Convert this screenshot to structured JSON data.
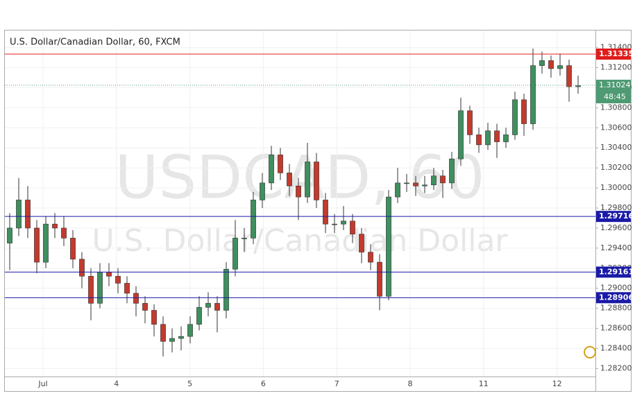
{
  "chart_data": {
    "type": "candlestick",
    "title": "U.S. Dollar/Canadian Dollar, 60, FXCM",
    "watermark": "USDCAD, 60",
    "watermark_subtitle": "U.S. Dollar/Canadian Dollar",
    "categories": [
      "Jul",
      "4",
      "5",
      "6",
      "7",
      "8",
      "11",
      "12"
    ],
    "up_color": "#3f8f5f",
    "down_color": "#c23b2e",
    "ylim": [
      1.2812,
      1.3157
    ],
    "yticks": [
      {
        "value": 1.282,
        "label": "1.28200"
      },
      {
        "value": 1.284,
        "label": "1.28400"
      },
      {
        "value": 1.286,
        "label": "1.28600"
      },
      {
        "value": 1.288,
        "label": "1.28800"
      },
      {
        "value": 1.29,
        "label": "1.29000"
      },
      {
        "value": 1.292,
        "label": "1.29200"
      },
      {
        "value": 1.294,
        "label": "1.29400"
      },
      {
        "value": 1.296,
        "label": "1.29600"
      },
      {
        "value": 1.298,
        "label": "1.29800"
      },
      {
        "value": 1.3,
        "label": "1.30000"
      },
      {
        "value": 1.302,
        "label": "1.30200"
      },
      {
        "value": 1.304,
        "label": "1.30400"
      },
      {
        "value": 1.306,
        "label": "1.30600"
      },
      {
        "value": 1.308,
        "label": "1.30800"
      },
      {
        "value": 1.31,
        "label": "1.31000"
      },
      {
        "value": 1.312,
        "label": "1.31200"
      },
      {
        "value": 1.314,
        "label": "1.31400"
      }
    ],
    "grid": true,
    "levels": [
      {
        "value": 1.31335,
        "color": "#e01b1b"
      },
      {
        "value": 1.29716,
        "color": "#1a1aa8"
      },
      {
        "value": 1.29161,
        "color": "#1a1aa8"
      },
      {
        "value": 1.28906,
        "color": "#1a1aa8"
      }
    ],
    "last_price": 1.31024,
    "last_price_color": "#4e9a73",
    "countdown": "48:45",
    "candles": [
      [
        1.2945,
        1.2975,
        1.2918,
        1.296
      ],
      [
        1.296,
        1.301,
        1.2952,
        1.2988
      ],
      [
        1.2988,
        1.3002,
        1.295,
        1.296
      ],
      [
        1.296,
        1.2968,
        1.2915,
        1.2926
      ],
      [
        1.2926,
        1.2972,
        1.292,
        1.2964
      ],
      [
        1.2964,
        1.2975,
        1.295,
        1.296
      ],
      [
        1.296,
        1.2972,
        1.2942,
        1.295
      ],
      [
        1.295,
        1.2958,
        1.292,
        1.2929
      ],
      [
        1.2929,
        1.2936,
        1.29,
        1.2912
      ],
      [
        1.2912,
        1.292,
        1.2868,
        1.2885
      ],
      [
        1.2885,
        1.2925,
        1.288,
        1.2916
      ],
      [
        1.2916,
        1.2925,
        1.2902,
        1.2912
      ],
      [
        1.2912,
        1.292,
        1.2895,
        1.2905
      ],
      [
        1.2905,
        1.2912,
        1.2885,
        1.2895
      ],
      [
        1.2895,
        1.2902,
        1.2872,
        1.2885
      ],
      [
        1.2885,
        1.2892,
        1.2865,
        1.2878
      ],
      [
        1.2878,
        1.2884,
        1.2852,
        1.2864
      ],
      [
        1.2864,
        1.2872,
        1.2832,
        1.2847
      ],
      [
        1.2847,
        1.286,
        1.2836,
        1.285
      ],
      [
        1.285,
        1.2862,
        1.2838,
        1.2852
      ],
      [
        1.2852,
        1.2872,
        1.2845,
        1.2864
      ],
      [
        1.2864,
        1.2892,
        1.2858,
        1.2881
      ],
      [
        1.2881,
        1.2896,
        1.2872,
        1.2885
      ],
      [
        1.2885,
        1.2892,
        1.2856,
        1.2878
      ],
      [
        1.2878,
        1.2926,
        1.287,
        1.2919
      ],
      [
        1.2919,
        1.2968,
        1.2912,
        1.295
      ],
      [
        1.295,
        1.296,
        1.2936,
        1.295
      ],
      [
        1.295,
        1.2996,
        1.2944,
        1.2988
      ],
      [
        1.2988,
        1.3015,
        1.298,
        1.3005
      ],
      [
        1.3005,
        1.3042,
        1.2998,
        1.3033
      ],
      [
        1.3033,
        1.304,
        1.3008,
        1.3015
      ],
      [
        1.3015,
        1.3024,
        1.2992,
        1.3002
      ],
      [
        1.3002,
        1.301,
        1.2968,
        1.2991
      ],
      [
        1.2991,
        1.3045,
        1.2985,
        1.3026
      ],
      [
        1.3026,
        1.3035,
        1.298,
        1.2988
      ],
      [
        1.2988,
        1.2995,
        1.2955,
        1.2964
      ],
      [
        1.2964,
        1.2974,
        1.2955,
        1.2964
      ],
      [
        1.2964,
        1.2982,
        1.2958,
        1.2967
      ],
      [
        1.2967,
        1.2974,
        1.2945,
        1.2954
      ],
      [
        1.2954,
        1.296,
        1.2925,
        1.2936
      ],
      [
        1.2936,
        1.2944,
        1.2918,
        1.2926
      ],
      [
        1.2926,
        1.2934,
        1.2878,
        1.2892
      ],
      [
        1.2892,
        1.2998,
        1.2888,
        1.2991
      ],
      [
        1.2991,
        1.302,
        1.2985,
        1.3005
      ],
      [
        1.3005,
        1.3014,
        1.2996,
        1.3005
      ],
      [
        1.3005,
        1.3012,
        1.2992,
        1.3002
      ],
      [
        1.3002,
        1.3012,
        1.2995,
        1.3003
      ],
      [
        1.3003,
        1.302,
        1.2998,
        1.3012
      ],
      [
        1.3012,
        1.3018,
        1.299,
        1.3005
      ],
      [
        1.3005,
        1.3036,
        1.2999,
        1.3029
      ],
      [
        1.3029,
        1.309,
        1.3022,
        1.3077
      ],
      [
        1.3077,
        1.3082,
        1.3044,
        1.3053
      ],
      [
        1.3053,
        1.306,
        1.3035,
        1.3043
      ],
      [
        1.3043,
        1.3065,
        1.3038,
        1.3057
      ],
      [
        1.3057,
        1.3064,
        1.303,
        1.3046
      ],
      [
        1.3046,
        1.306,
        1.304,
        1.3053
      ],
      [
        1.3053,
        1.3096,
        1.3048,
        1.3088
      ],
      [
        1.3088,
        1.3094,
        1.3052,
        1.3064
      ],
      [
        1.3064,
        1.3139,
        1.3058,
        1.3122
      ],
      [
        1.3122,
        1.3136,
        1.3114,
        1.3127
      ],
      [
        1.3127,
        1.3132,
        1.311,
        1.3119
      ],
      [
        1.3119,
        1.3134,
        1.3112,
        1.3122
      ],
      [
        1.3122,
        1.3128,
        1.3086,
        1.3101
      ],
      [
        1.3101,
        1.3112,
        1.3094,
        1.3102
      ]
    ]
  }
}
